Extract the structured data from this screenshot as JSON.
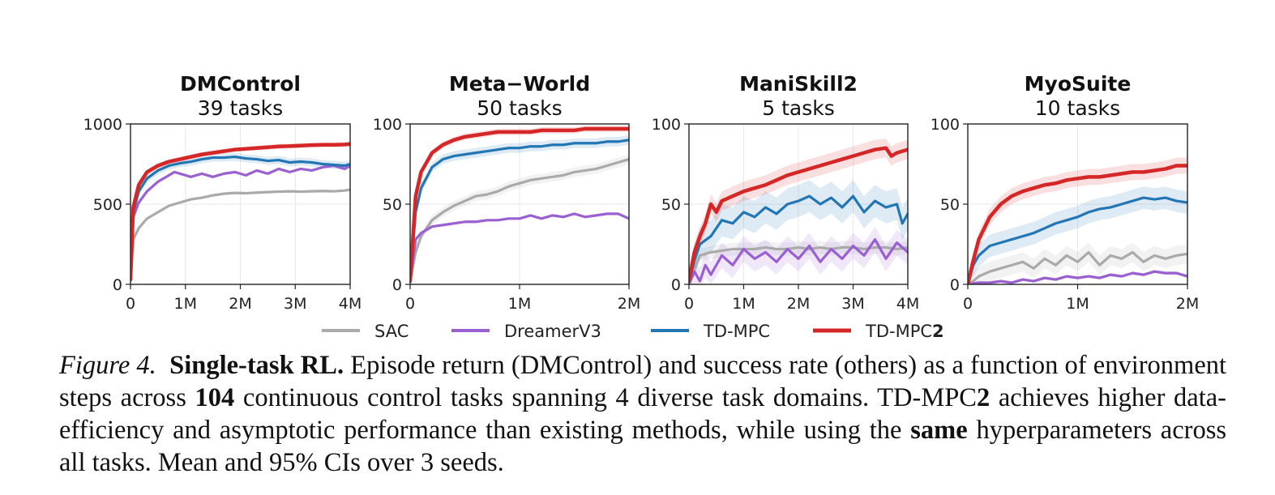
{
  "chart_data": [
    {
      "type": "line",
      "title": "DMControl",
      "subtitle": "39 tasks",
      "xlim": [
        0,
        4000000
      ],
      "ylim": [
        0,
        1000
      ],
      "xticks": [
        0,
        1000000,
        2000000,
        3000000,
        4000000
      ],
      "xtick_labels": [
        "0",
        "1M",
        "2M",
        "3M",
        "4M"
      ],
      "yticks": [
        0,
        500,
        1000
      ],
      "ytick_labels": [
        "0",
        "500",
        "1000"
      ],
      "grid": true,
      "series": [
        {
          "name": "SAC",
          "color": "#aaaaaa",
          "band": 0,
          "x": [
            0,
            50000,
            150000,
            300000,
            500000,
            700000,
            900000,
            1100000,
            1300000,
            1500000,
            1700000,
            1900000,
            2100000,
            2300000,
            2500000,
            2700000,
            2900000,
            3100000,
            3300000,
            3500000,
            3700000,
            3900000,
            4000000
          ],
          "y": [
            30,
            280,
            350,
            410,
            450,
            490,
            510,
            530,
            540,
            555,
            565,
            570,
            568,
            572,
            575,
            578,
            580,
            578,
            580,
            582,
            580,
            585,
            590
          ]
        },
        {
          "name": "DreamerV3",
          "color": "#9a5fd0",
          "band": 0,
          "x": [
            0,
            50000,
            150000,
            300000,
            500000,
            700000,
            800000,
            900000,
            1100000,
            1300000,
            1500000,
            1700000,
            1900000,
            2100000,
            2300000,
            2500000,
            2700000,
            2900000,
            3100000,
            3300000,
            3500000,
            3700000,
            3900000,
            4000000
          ],
          "y": [
            30,
            420,
            510,
            580,
            640,
            680,
            700,
            690,
            670,
            690,
            670,
            690,
            700,
            680,
            710,
            690,
            720,
            700,
            720,
            710,
            730,
            740,
            720,
            740
          ]
        },
        {
          "name": "TD-MPC",
          "color": "#2276b4",
          "band": 25,
          "x": [
            0,
            50000,
            150000,
            300000,
            500000,
            700000,
            900000,
            1100000,
            1300000,
            1500000,
            1700000,
            1900000,
            2100000,
            2300000,
            2500000,
            2700000,
            2900000,
            3100000,
            3300000,
            3500000,
            3700000,
            3900000,
            4000000
          ],
          "y": [
            30,
            450,
            580,
            660,
            710,
            740,
            755,
            765,
            780,
            790,
            790,
            795,
            785,
            780,
            770,
            775,
            760,
            765,
            760,
            750,
            745,
            740,
            750
          ]
        },
        {
          "name": "TD-MPC2",
          "color": "#d62728",
          "band": 15,
          "x": [
            0,
            50000,
            150000,
            300000,
            500000,
            700000,
            900000,
            1100000,
            1300000,
            1500000,
            1700000,
            1900000,
            2100000,
            2300000,
            2500000,
            2700000,
            2900000,
            3100000,
            3300000,
            3500000,
            3700000,
            3900000,
            4000000
          ],
          "y": [
            30,
            480,
            620,
            700,
            740,
            765,
            780,
            795,
            810,
            820,
            830,
            840,
            845,
            850,
            855,
            860,
            862,
            865,
            868,
            870,
            870,
            872,
            875
          ]
        }
      ]
    },
    {
      "type": "line",
      "title": "Meta−World",
      "subtitle": "50 tasks",
      "xlim": [
        0,
        2000000
      ],
      "ylim": [
        0,
        100
      ],
      "xticks": [
        0,
        1000000,
        2000000
      ],
      "xtick_labels": [
        "0",
        "1M",
        "2M"
      ],
      "yticks": [
        0,
        50,
        100
      ],
      "ytick_labels": [
        "0",
        "50",
        "100"
      ],
      "grid": true,
      "series": [
        {
          "name": "SAC",
          "color": "#aaaaaa",
          "band": 3,
          "x": [
            0,
            50000,
            100000,
            200000,
            300000,
            400000,
            500000,
            600000,
            700000,
            800000,
            900000,
            1000000,
            1100000,
            1200000,
            1300000,
            1400000,
            1500000,
            1600000,
            1700000,
            1800000,
            1900000,
            2000000
          ],
          "y": [
            2,
            20,
            30,
            40,
            45,
            49,
            52,
            55,
            56,
            58,
            61,
            63,
            65,
            66,
            67,
            68,
            70,
            71,
            72,
            74,
            76,
            78
          ]
        },
        {
          "name": "DreamerV3",
          "color": "#9a5fd0",
          "band": 0,
          "x": [
            0,
            50000,
            100000,
            200000,
            300000,
            400000,
            500000,
            600000,
            700000,
            800000,
            900000,
            1000000,
            1100000,
            1200000,
            1300000,
            1400000,
            1500000,
            1600000,
            1700000,
            1800000,
            1900000,
            2000000
          ],
          "y": [
            2,
            28,
            32,
            36,
            37,
            38,
            39,
            39,
            40,
            40,
            41,
            41,
            43,
            41,
            43,
            42,
            44,
            42,
            43,
            44,
            44,
            41
          ]
        },
        {
          "name": "TD-MPC",
          "color": "#2276b4",
          "band": 3,
          "x": [
            0,
            50000,
            100000,
            200000,
            300000,
            400000,
            500000,
            600000,
            700000,
            800000,
            900000,
            1000000,
            1100000,
            1200000,
            1300000,
            1400000,
            1500000,
            1600000,
            1700000,
            1800000,
            1900000,
            2000000
          ],
          "y": [
            2,
            45,
            60,
            73,
            78,
            80,
            81,
            82,
            83,
            84,
            85,
            85,
            86,
            86,
            87,
            87,
            88,
            88,
            88,
            89,
            89,
            90
          ]
        },
        {
          "name": "TD-MPC2",
          "color": "#d62728",
          "band": 2,
          "x": [
            0,
            50000,
            100000,
            200000,
            300000,
            400000,
            500000,
            600000,
            700000,
            800000,
            900000,
            1000000,
            1100000,
            1200000,
            1300000,
            1400000,
            1500000,
            1600000,
            1700000,
            1800000,
            1900000,
            2000000
          ],
          "y": [
            2,
            55,
            70,
            82,
            87,
            90,
            92,
            93,
            94,
            95,
            95,
            95,
            95,
            96,
            96,
            96,
            96,
            97,
            97,
            97,
            97,
            97
          ]
        }
      ]
    },
    {
      "type": "line",
      "title": "ManiSkill2",
      "subtitle": "5 tasks",
      "xlim": [
        0,
        4000000
      ],
      "ylim": [
        0,
        100
      ],
      "xticks": [
        0,
        1000000,
        2000000,
        3000000,
        4000000
      ],
      "xtick_labels": [
        "0",
        "1M",
        "2M",
        "3M",
        "4M"
      ],
      "yticks": [
        0,
        50,
        100
      ],
      "ytick_labels": [
        "0",
        "50",
        "100"
      ],
      "grid": true,
      "series": [
        {
          "name": "SAC",
          "color": "#aaaaaa",
          "band": 4,
          "x": [
            0,
            100000,
            200000,
            400000,
            600000,
            800000,
            1000000,
            1200000,
            1400000,
            1600000,
            1800000,
            2000000,
            2200000,
            2400000,
            2600000,
            2800000,
            3000000,
            3200000,
            3400000,
            3600000,
            3800000,
            4000000
          ],
          "y": [
            2,
            10,
            18,
            20,
            21,
            22,
            22,
            22,
            23,
            22,
            22,
            23,
            22,
            23,
            22,
            23,
            23,
            22,
            23,
            23,
            22,
            23
          ]
        },
        {
          "name": "DreamerV3",
          "color": "#9a5fd0",
          "band": 8,
          "x": [
            0,
            100000,
            200000,
            300000,
            400000,
            600000,
            800000,
            1000000,
            1200000,
            1400000,
            1600000,
            1800000,
            2000000,
            2200000,
            2400000,
            2600000,
            2800000,
            3000000,
            3200000,
            3400000,
            3600000,
            3800000,
            4000000
          ],
          "y": [
            0,
            8,
            2,
            12,
            6,
            18,
            12,
            22,
            16,
            20,
            14,
            22,
            16,
            24,
            14,
            22,
            16,
            24,
            18,
            28,
            16,
            26,
            20
          ]
        },
        {
          "name": "TD-MPC",
          "color": "#2276b4",
          "band": 10,
          "x": [
            0,
            100000,
            200000,
            400000,
            600000,
            800000,
            1000000,
            1200000,
            1400000,
            1600000,
            1800000,
            2000000,
            2200000,
            2400000,
            2600000,
            2800000,
            3000000,
            3200000,
            3400000,
            3600000,
            3800000,
            3900000,
            4000000
          ],
          "y": [
            2,
            15,
            25,
            30,
            40,
            38,
            45,
            42,
            48,
            44,
            50,
            52,
            55,
            50,
            54,
            48,
            55,
            45,
            52,
            48,
            50,
            38,
            44
          ]
        },
        {
          "name": "TD-MPC2",
          "color": "#d62728",
          "band": 6,
          "x": [
            0,
            100000,
            200000,
            300000,
            400000,
            500000,
            600000,
            800000,
            1000000,
            1200000,
            1400000,
            1600000,
            1800000,
            2000000,
            2200000,
            2400000,
            2600000,
            2800000,
            3000000,
            3200000,
            3400000,
            3600000,
            3700000,
            3800000,
            4000000
          ],
          "y": [
            2,
            20,
            30,
            38,
            50,
            45,
            52,
            55,
            58,
            60,
            62,
            65,
            68,
            70,
            72,
            74,
            76,
            78,
            80,
            82,
            84,
            85,
            80,
            82,
            84
          ]
        }
      ]
    },
    {
      "type": "line",
      "title": "MyoSuite",
      "subtitle": "10 tasks",
      "xlim": [
        0,
        2000000
      ],
      "ylim": [
        0,
        100
      ],
      "xticks": [
        0,
        1000000,
        2000000
      ],
      "xtick_labels": [
        "0",
        "1M",
        "2M"
      ],
      "yticks": [
        0,
        50,
        100
      ],
      "ytick_labels": [
        "0",
        "50",
        "100"
      ],
      "grid": true,
      "series": [
        {
          "name": "SAC",
          "color": "#aaaaaa",
          "band": 6,
          "x": [
            0,
            50000,
            100000,
            200000,
            300000,
            400000,
            500000,
            600000,
            700000,
            800000,
            900000,
            1000000,
            1100000,
            1200000,
            1300000,
            1400000,
            1500000,
            1600000,
            1700000,
            1800000,
            1900000,
            2000000
          ],
          "y": [
            0,
            2,
            5,
            8,
            10,
            12,
            14,
            10,
            16,
            12,
            18,
            14,
            20,
            12,
            18,
            16,
            20,
            14,
            18,
            16,
            18,
            19
          ]
        },
        {
          "name": "DreamerV3",
          "color": "#9a5fd0",
          "band": 1,
          "x": [
            0,
            100000,
            200000,
            300000,
            400000,
            500000,
            600000,
            700000,
            800000,
            900000,
            1000000,
            1100000,
            1200000,
            1300000,
            1400000,
            1500000,
            1600000,
            1700000,
            1800000,
            1900000,
            2000000
          ],
          "y": [
            0,
            1,
            1,
            2,
            1,
            3,
            2,
            4,
            3,
            5,
            4,
            5,
            4,
            6,
            5,
            7,
            6,
            8,
            7,
            7,
            5
          ]
        },
        {
          "name": "TD-MPC",
          "color": "#2276b4",
          "band": 7,
          "x": [
            0,
            50000,
            100000,
            200000,
            300000,
            400000,
            500000,
            600000,
            700000,
            800000,
            900000,
            1000000,
            1100000,
            1200000,
            1300000,
            1400000,
            1500000,
            1600000,
            1700000,
            1800000,
            1900000,
            2000000
          ],
          "y": [
            0,
            12,
            18,
            24,
            26,
            28,
            30,
            32,
            35,
            38,
            40,
            42,
            45,
            47,
            48,
            50,
            52,
            54,
            53,
            54,
            52,
            51
          ]
        },
        {
          "name": "TD-MPC2",
          "color": "#d62728",
          "band": 5,
          "x": [
            0,
            50000,
            100000,
            200000,
            300000,
            400000,
            500000,
            600000,
            700000,
            800000,
            900000,
            1000000,
            1100000,
            1200000,
            1300000,
            1400000,
            1500000,
            1600000,
            1700000,
            1800000,
            1900000,
            2000000
          ],
          "y": [
            0,
            15,
            28,
            42,
            50,
            55,
            58,
            60,
            62,
            63,
            65,
            66,
            67,
            67,
            68,
            69,
            70,
            70,
            71,
            72,
            74,
            74
          ]
        }
      ]
    }
  ],
  "legend": {
    "placement": "bottom",
    "entries": [
      {
        "label": "SAC",
        "color": "#aaaaaa"
      },
      {
        "label": "DreamerV3",
        "color": "#9a5fd0"
      },
      {
        "label": "TD-MPC",
        "color": "#2276b4"
      },
      {
        "label": "TD-MPC",
        "suffix_bold": "2",
        "color": "#d62728"
      }
    ]
  },
  "caption": {
    "label": "Figure 4.",
    "heading": "Single-task RL.",
    "text1": "Episode return (DMControl) and success rate (others) as a function of environment steps across",
    "bold_count": "104",
    "text2": "continuous control tasks spanning 4 diverse task domains. TD-MPC",
    "bold_suffix": "2",
    "text3": "achieves higher data-efficiency and asymptotic performance than existing methods, while using the",
    "bold_same": "same",
    "text4": "hyperparameters across all tasks. Mean and 95% CIs over 3 seeds."
  }
}
